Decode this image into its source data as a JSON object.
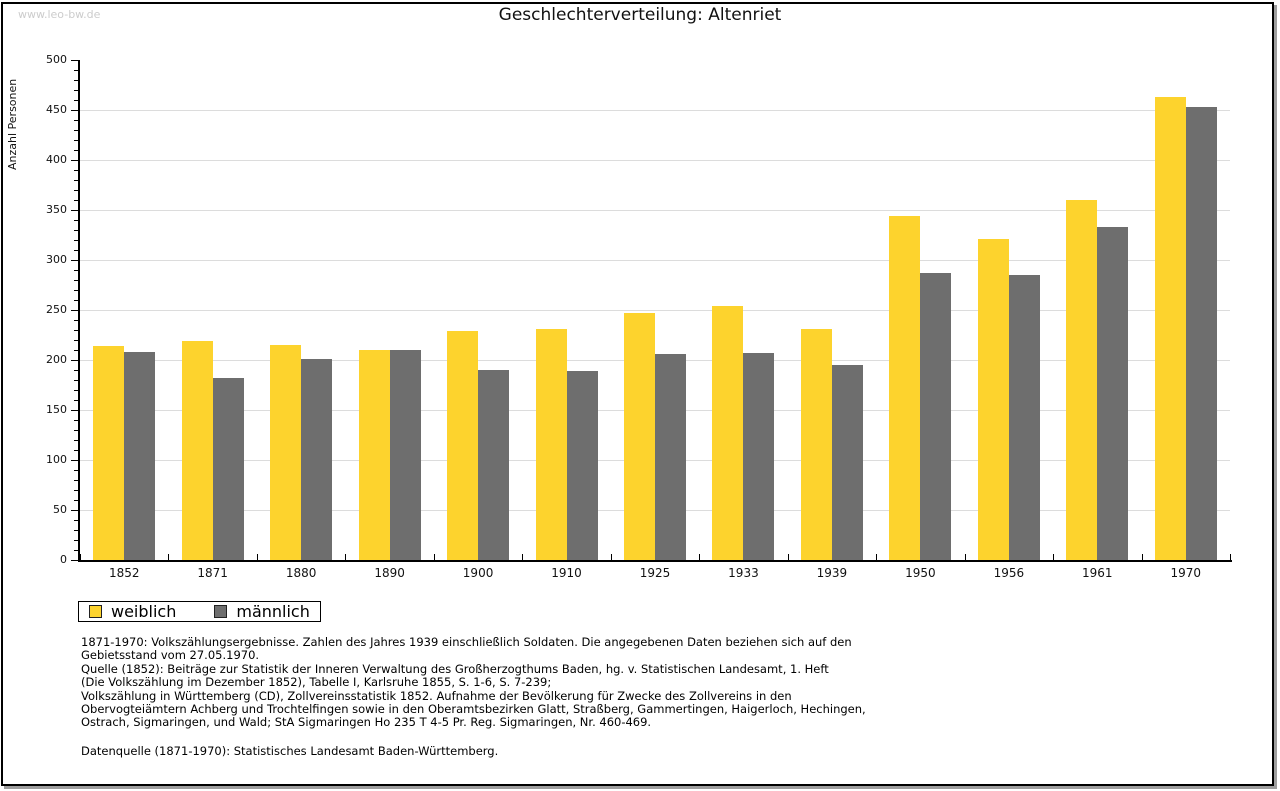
{
  "watermark": "www.leo-bw.de",
  "chart_data": {
    "type": "bar",
    "title": "Geschlechterverteilung: Altenriet",
    "ylabel": "Anzahl Personen",
    "xlabel": "",
    "ylim": [
      0,
      500
    ],
    "ytick_major": 50,
    "ytick_minor": 10,
    "grid": "horizontal",
    "legend_position": "below-left",
    "categories": [
      "1852",
      "1871",
      "1880",
      "1890",
      "1900",
      "1910",
      "1925",
      "1933",
      "1939",
      "1950",
      "1956",
      "1961",
      "1970"
    ],
    "series": [
      {
        "name": "weiblich",
        "color": "#FDD32D",
        "values": [
          214,
          219,
          215,
          210,
          229,
          231,
          247,
          254,
          231,
          344,
          321,
          360,
          463
        ]
      },
      {
        "name": "männlich",
        "color": "#6E6E6E",
        "values": [
          208,
          182,
          201,
          210,
          190,
          189,
          206,
          207,
          195,
          287,
          285,
          333,
          453
        ]
      }
    ]
  },
  "footnotes": {
    "lines": [
      "1871-1970: Volkszählungsergebnisse. Zahlen des Jahres 1939 einschließlich Soldaten. Die angegebenen Daten beziehen sich auf den",
      "Gebietsstand vom 27.05.1970.",
      "Quelle (1852): Beiträge zur Statistik der Inneren Verwaltung des Großherzogthums Baden, hg. v. Statistischen Landesamt, 1. Heft",
      "(Die Volkszählung im Dezember 1852), Tabelle I, Karlsruhe 1855, S. 1-6, S. 7-239;",
      "Volkszählung in Württemberg (CD), Zollvereinsstatistik 1852. Aufnahme der Bevölkerung für Zwecke des Zollvereins in den",
      "Obervogteiämtern Achberg und Trochtelfingen sowie in den Oberamtsbezirken Glatt, Straßberg, Gammertingen, Haigerloch, Hechingen,",
      "Ostrach, Sigmaringen, und Wald; StA Sigmaringen Ho 235 T 4-5 Pr. Reg. Sigmaringen, Nr. 460-469."
    ],
    "datasource": "Datenquelle (1871-1970): Statistisches Landesamt Baden-Württemberg."
  }
}
